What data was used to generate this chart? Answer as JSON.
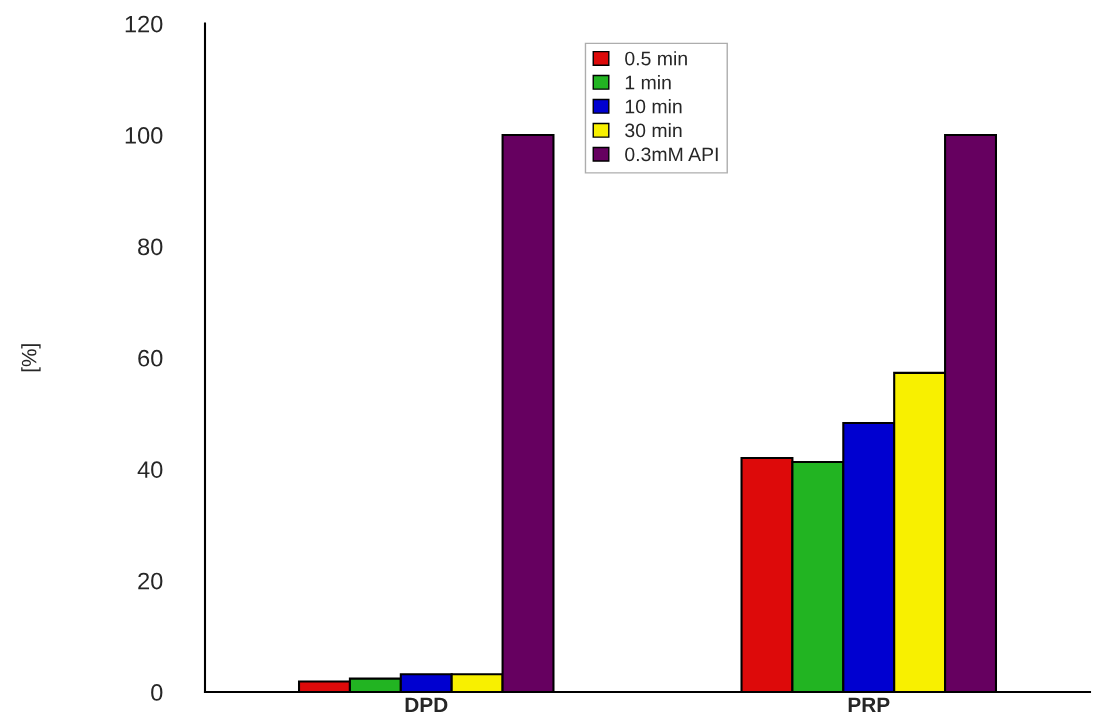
{
  "chart_data": {
    "type": "bar",
    "ylabel": "[%]",
    "categories": [
      "DPD",
      "PRP"
    ],
    "series": [
      {
        "name": "0.5 min",
        "color": "#dd0a0a",
        "values": [
          1.9,
          42.0
        ]
      },
      {
        "name": "1 min",
        "color": "#22b422",
        "values": [
          2.4,
          41.3
        ]
      },
      {
        "name": "10 min",
        "color": "#0000d0",
        "values": [
          3.2,
          48.3
        ]
      },
      {
        "name": "30 min",
        "color": "#f8f000",
        "values": [
          3.2,
          57.3
        ]
      },
      {
        "name": "0.3mM API",
        "color": "#660060",
        "values": [
          100,
          100
        ]
      }
    ],
    "ylim": [
      0,
      120
    ],
    "yticks": [
      0,
      20,
      40,
      60,
      80,
      100,
      120
    ],
    "grid": false,
    "legend": "top"
  }
}
